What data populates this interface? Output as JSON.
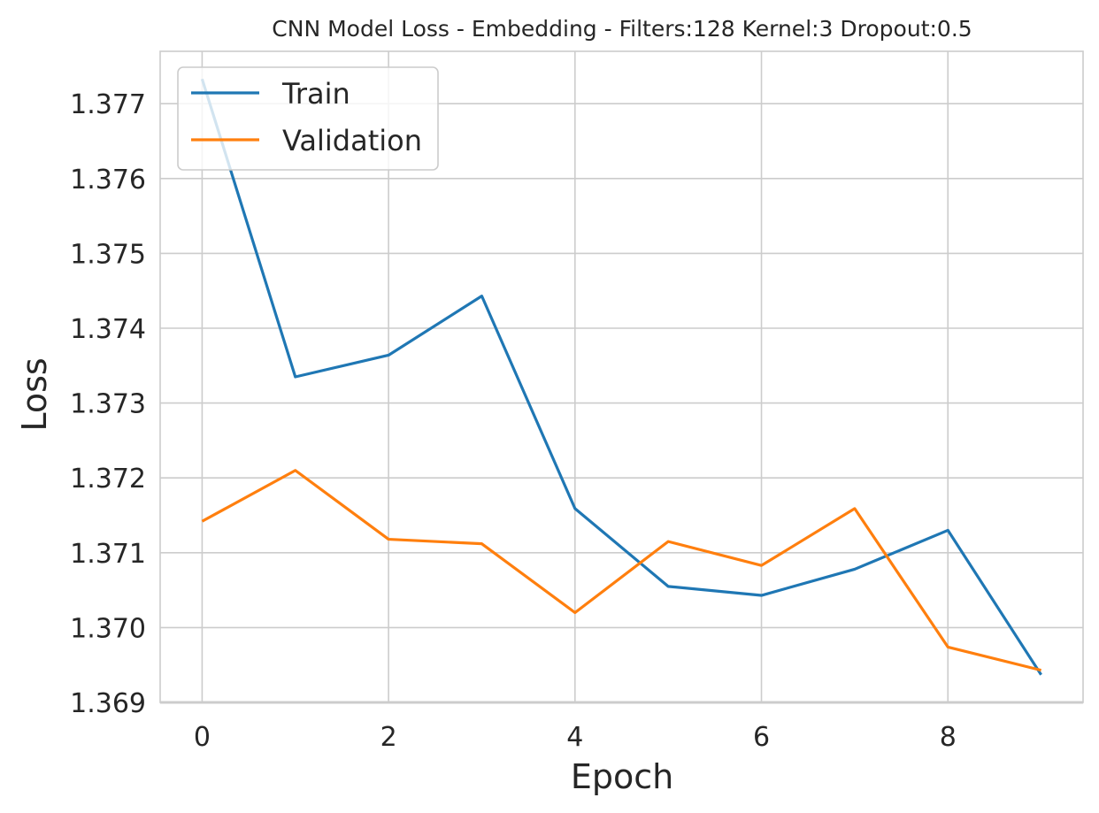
{
  "chart_data": {
    "type": "line",
    "title": "CNN Model Loss - Embedding - Filters:128 Kernel:3 Dropout:0.5",
    "xlabel": "Epoch",
    "ylabel": "Loss",
    "x": [
      0,
      1,
      2,
      3,
      4,
      5,
      6,
      7,
      8,
      9
    ],
    "xlim": [
      -0.45,
      9.45
    ],
    "ylim": [
      1.369,
      1.3777
    ],
    "xticks": [
      0,
      2,
      4,
      6,
      8
    ],
    "xtick_labels": [
      "0",
      "2",
      "4",
      "6",
      "8"
    ],
    "yticks": [
      1.369,
      1.37,
      1.371,
      1.372,
      1.373,
      1.374,
      1.375,
      1.376,
      1.377
    ],
    "ytick_labels": [
      "1.369",
      "1.370",
      "1.371",
      "1.372",
      "1.373",
      "1.374",
      "1.375",
      "1.376",
      "1.377"
    ],
    "grid": true,
    "legend_position": "upper-left",
    "series": [
      {
        "name": "Train",
        "color": "#1f77b4",
        "values": [
          1.37733,
          1.37335,
          1.37364,
          1.37443,
          1.37159,
          1.37055,
          1.37043,
          1.37078,
          1.3713,
          1.36937
        ]
      },
      {
        "name": "Validation",
        "color": "#ff7f0e",
        "values": [
          1.37142,
          1.3721,
          1.37118,
          1.37112,
          1.3702,
          1.37115,
          1.37083,
          1.37159,
          1.36974,
          1.36943
        ]
      }
    ]
  }
}
